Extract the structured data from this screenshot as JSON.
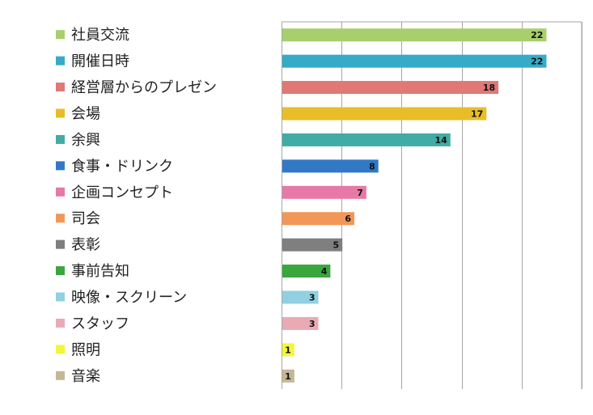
{
  "chart_data": {
    "type": "bar",
    "orientation": "horizontal",
    "categories": [
      "社員交流",
      "開催日時",
      "経営層からのプレゼン",
      "会場",
      "余興",
      "食事・ドリンク",
      "企画コンセプト",
      "司会",
      "表彰",
      "事前告知",
      "映像・スクリーン",
      "スタッフ",
      "照明",
      "音楽"
    ],
    "values": [
      22,
      22,
      18,
      17,
      14,
      8,
      7,
      6,
      5,
      4,
      3,
      3,
      1,
      1
    ],
    "colors": [
      "#a8cf6c",
      "#35abc8",
      "#e07876",
      "#e8bd27",
      "#41aca5",
      "#3179c6",
      "#e779a6",
      "#f19858",
      "#7f7f7f",
      "#3aa63e",
      "#90d0e2",
      "#e8abb5",
      "#f4f63a",
      "#c4b796"
    ],
    "xlim": [
      0,
      25
    ],
    "grid_step": 5,
    "grid": true,
    "data_labels": true,
    "legend": "left",
    "title": "",
    "xlabel": "",
    "ylabel": ""
  }
}
